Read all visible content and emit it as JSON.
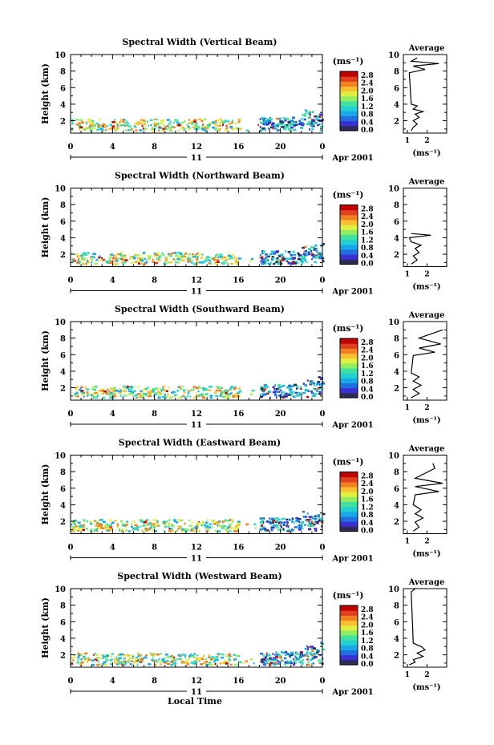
{
  "date_label": "Apr 2001",
  "day_label": "11",
  "xlabel": "Local Time",
  "x_tick_labels": [
    "0",
    "4",
    "8",
    "12",
    "16",
    "20",
    "0"
  ],
  "y_tick_labels": [
    "2",
    "4",
    "6",
    "8",
    "10"
  ],
  "ylabel": "Height (km)",
  "colorbar": {
    "unit": "(ms⁻¹)",
    "ticks": [
      "2.8",
      "2.4",
      "2.0",
      "1.6",
      "1.2",
      "0.8",
      "0.4",
      "0.0"
    ],
    "colors": [
      "#2b2b55",
      "#3a2fd0",
      "#1f6fe0",
      "#18a8e8",
      "#22d0d0",
      "#3fe0a0",
      "#90ee60",
      "#e0f040",
      "#f8c030",
      "#f08020",
      "#e04020",
      "#c00000"
    ]
  },
  "average": {
    "title": "Average",
    "unit": "(ms⁻¹)",
    "x_tick_labels": [
      "1",
      "2"
    ]
  },
  "chart_data": [
    {
      "type": "heatmap",
      "title": "Spectral Width (Vertical Beam)",
      "ylabel": "Height (km)",
      "xlabel": "",
      "xlim": [
        0,
        24
      ],
      "ylim": [
        0.5,
        10
      ],
      "avg_profile": [
        [
          1.2,
          0.8
        ],
        [
          1.3,
          1.2
        ],
        [
          1.5,
          1.6
        ],
        [
          1.3,
          2.0
        ],
        [
          1.6,
          2.4
        ],
        [
          1.4,
          2.8
        ],
        [
          1.8,
          3.1
        ],
        [
          1.3,
          3.4
        ],
        [
          1.5,
          3.8
        ],
        [
          1.2,
          4.0
        ],
        [
          1.1,
          7.8
        ],
        [
          1.9,
          8.2
        ],
        [
          1.3,
          8.6
        ],
        [
          2.6,
          8.9
        ],
        [
          1.2,
          9.2
        ],
        [
          1.5,
          9.6
        ]
      ]
    },
    {
      "type": "heatmap",
      "title": "Spectral Width (Northward Beam)",
      "ylabel": "Height (km)",
      "xlabel": "",
      "xlim": [
        0,
        24
      ],
      "ylim": [
        0.5,
        10
      ],
      "avg_profile": [
        [
          1.2,
          0.8
        ],
        [
          1.5,
          1.3
        ],
        [
          1.3,
          1.8
        ],
        [
          1.6,
          2.2
        ],
        [
          1.4,
          2.7
        ],
        [
          1.7,
          3.1
        ],
        [
          1.2,
          3.5
        ],
        [
          1.1,
          4.0
        ],
        [
          2.2,
          4.3
        ],
        [
          1.2,
          4.5
        ]
      ]
    },
    {
      "type": "heatmap",
      "title": "Spectral Width (Southward Beam)",
      "ylabel": "Height (km)",
      "xlabel": "",
      "xlim": [
        0,
        24
      ],
      "ylim": [
        0.5,
        10
      ],
      "avg_profile": [
        [
          1.2,
          0.8
        ],
        [
          1.6,
          1.3
        ],
        [
          1.3,
          1.8
        ],
        [
          1.7,
          2.3
        ],
        [
          1.3,
          2.8
        ],
        [
          1.6,
          3.3
        ],
        [
          1.2,
          3.8
        ],
        [
          1.3,
          5.9
        ],
        [
          2.4,
          6.3
        ],
        [
          1.6,
          6.8
        ],
        [
          2.7,
          7.3
        ],
        [
          1.6,
          8.0
        ],
        [
          2.8,
          9.0
        ]
      ]
    },
    {
      "type": "heatmap",
      "title": "Spectral Width (Eastward Beam)",
      "ylabel": "Height (km)",
      "xlabel": "",
      "xlim": [
        0,
        24
      ],
      "ylim": [
        0.5,
        10
      ],
      "avg_profile": [
        [
          1.3,
          0.8
        ],
        [
          1.6,
          1.3
        ],
        [
          1.4,
          1.9
        ],
        [
          1.8,
          2.4
        ],
        [
          1.4,
          2.9
        ],
        [
          1.7,
          3.4
        ],
        [
          1.3,
          4.0
        ],
        [
          1.4,
          5.2
        ],
        [
          2.6,
          5.6
        ],
        [
          1.4,
          6.2
        ],
        [
          2.8,
          6.6
        ],
        [
          1.4,
          7.2
        ],
        [
          2.4,
          8.4
        ],
        [
          2.3,
          9.0
        ]
      ]
    },
    {
      "type": "heatmap",
      "title": "Spectral Width (Westward Beam)",
      "ylabel": "Height (km)",
      "xlabel": "Local Time",
      "xlim": [
        0,
        24
      ],
      "ylim": [
        0.5,
        10
      ],
      "avg_profile": [
        [
          1.1,
          0.8
        ],
        [
          1.4,
          1.1
        ],
        [
          1.3,
          1.4
        ],
        [
          1.8,
          1.8
        ],
        [
          1.5,
          2.2
        ],
        [
          1.9,
          2.6
        ],
        [
          1.7,
          3.0
        ],
        [
          1.3,
          3.4
        ],
        [
          1.2,
          9.6
        ],
        [
          1.4,
          10.0
        ]
      ]
    }
  ]
}
